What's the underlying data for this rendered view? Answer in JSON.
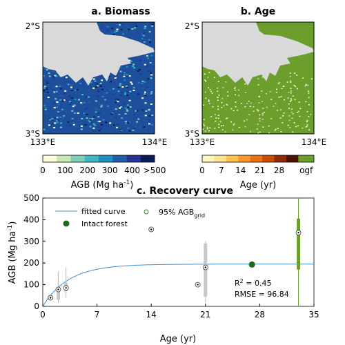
{
  "panel_a": {
    "title": "a. Biomass",
    "lat_top": "2°S",
    "lat_bottom": "3°S",
    "lon_left": "133°E",
    "lon_right": "134°E",
    "colorbar": {
      "ticks": [
        "0",
        "100",
        "200",
        "300",
        "400",
        ">500"
      ],
      "label_main": "AGB (Mg ha",
      "label_sup": "-1",
      "label_end": ")",
      "colors": [
        "#ffffd9",
        "#c7e9b4",
        "#7fcdbb",
        "#41b6c4",
        "#1d91c0",
        "#225ea8",
        "#253494",
        "#081d58"
      ]
    }
  },
  "panel_b": {
    "title": "b. Age",
    "lat_top": "2°S",
    "lat_bottom": "3°S",
    "lon_left": "133°E",
    "lon_right": "134°E",
    "colorbar": {
      "ticks": [
        "0",
        "7",
        "14",
        "21",
        "28",
        "ogf"
      ],
      "label": "Age (yr)",
      "colors": [
        "#fff7bc",
        "#fee391",
        "#fec44f",
        "#fe9929",
        "#ec7014",
        "#cc4c02",
        "#8c2d04",
        "#4a1400"
      ],
      "ogf_color": "#6b9e2a"
    }
  },
  "colors": {
    "water": "#d9d9d9",
    "forest_green": "#6b9e2a",
    "fit_line": "#3a8fd0",
    "intact": "#1b6b1b",
    "box": "#c8c8c8"
  },
  "chart_data": {
    "type": "scatter",
    "title": "c. Recovery curve",
    "xlabel": "Age (yr)",
    "ylabel_main": "AGB (Mg ha",
    "ylabel_sup": "-1",
    "ylabel_end": ")",
    "xlim": [
      0,
      35
    ],
    "ylim": [
      0,
      500
    ],
    "xticks": [
      "0",
      "7",
      "14",
      "21",
      "28",
      "35"
    ],
    "yticks": [
      "0",
      "100",
      "200",
      "300",
      "400",
      "500"
    ],
    "legend": {
      "fitted": "fitted curve",
      "grid_main": "95% AGB",
      "grid_sub": "grid",
      "intact": "Intact forest"
    },
    "fitted_curve": {
      "asymptote": 195,
      "rate": 0.3
    },
    "boxes": [
      {
        "age": 1,
        "median": 40,
        "q1": 35,
        "q3": 48,
        "lo": 30,
        "hi": 55
      },
      {
        "age": 2,
        "median": 78,
        "q1": 30,
        "q3": 90,
        "lo": 15,
        "hi": 160
      },
      {
        "age": 3,
        "median": 85,
        "q1": 70,
        "q3": 110,
        "lo": 40,
        "hi": 180
      },
      {
        "age": 14,
        "median": 355,
        "q1": 355,
        "q3": 355,
        "lo": 355,
        "hi": 355
      },
      {
        "age": 20,
        "median": 100,
        "q1": 100,
        "q3": 100,
        "lo": 100,
        "hi": 100
      },
      {
        "age": 21,
        "median": 180,
        "q1": 45,
        "q3": 290,
        "lo": 15,
        "hi": 300
      }
    ],
    "intact_box": {
      "age": 33,
      "median": 340,
      "q1": 170,
      "q3": 405,
      "lo": 0,
      "hi": 500
    },
    "intact_point": {
      "age": 27,
      "value": 193
    },
    "stats": {
      "r2_label": "R",
      "r2_sup": "2",
      "r2_value": " = 0.45",
      "rmse": "RMSE = 96.84"
    }
  }
}
